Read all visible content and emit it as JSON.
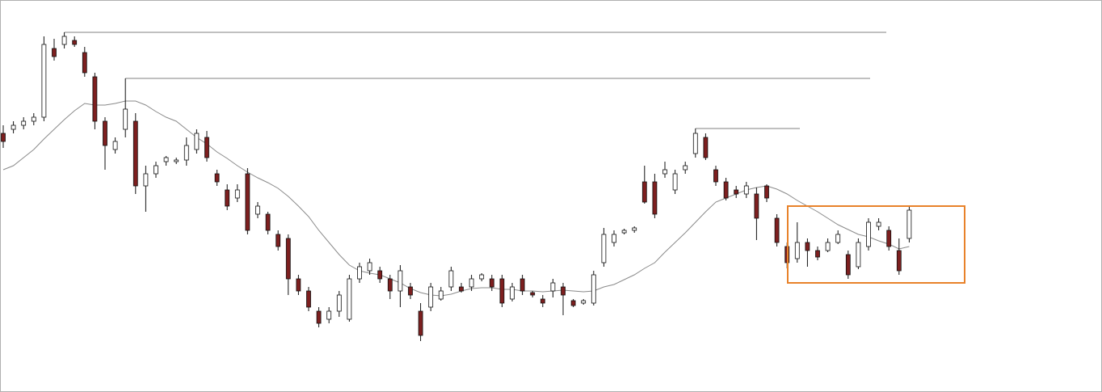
{
  "chart_data": {
    "type": "candlestick",
    "open": [
      320,
      325,
      330,
      335,
      340,
      425,
      430,
      435,
      420,
      390,
      335,
      300,
      325,
      335,
      255,
      270,
      285,
      285,
      287,
      300,
      315,
      270,
      250,
      240,
      270,
      220,
      220,
      195,
      190,
      140,
      125,
      100,
      90,
      100,
      90,
      140,
      150,
      150,
      140,
      125,
      130,
      100,
      105,
      115,
      130,
      130,
      130,
      140,
      140,
      140,
      115,
      140,
      123,
      115,
      125,
      130,
      113,
      110,
      110,
      160,
      185,
      197,
      200,
      260,
      260,
      270,
      250,
      275,
      295,
      315,
      275,
      260,
      250,
      245,
      245,
      255,
      215,
      180,
      165,
      185,
      175,
      175,
      185,
      170,
      155,
      180,
      205,
      200,
      175,
      190
    ],
    "high": [
      330,
      335,
      340,
      345,
      440,
      437,
      445,
      440,
      427,
      395,
      340,
      315,
      388,
      345,
      280,
      285,
      292,
      290,
      315,
      325,
      323,
      275,
      257,
      257,
      277,
      235,
      223,
      200,
      195,
      145,
      130,
      105,
      105,
      125,
      145,
      160,
      165,
      155,
      145,
      157,
      135,
      110,
      135,
      130,
      155,
      135,
      145,
      147,
      145,
      145,
      135,
      145,
      125,
      120,
      140,
      135,
      115,
      115,
      150,
      203,
      200,
      202,
      205,
      280,
      270,
      285,
      275,
      285,
      326,
      320,
      280,
      265,
      255,
      260,
      253,
      257,
      220,
      185,
      210,
      190,
      180,
      190,
      200,
      175,
      190,
      215,
      215,
      205,
      190,
      230
    ],
    "low": [
      302,
      320,
      325,
      330,
      335,
      410,
      425,
      427,
      390,
      325,
      275,
      295,
      315,
      245,
      223,
      265,
      280,
      282,
      280,
      295,
      285,
      255,
      225,
      235,
      195,
      215,
      195,
      175,
      120,
      120,
      100,
      80,
      85,
      93,
      87,
      135,
      145,
      135,
      115,
      105,
      115,
      63,
      100,
      113,
      125,
      123,
      125,
      137,
      125,
      105,
      112,
      120,
      117,
      105,
      117,
      95,
      105,
      108,
      107,
      155,
      180,
      195,
      197,
      233,
      215,
      265,
      245,
      270,
      290,
      287,
      255,
      237,
      240,
      240,
      188,
      235,
      180,
      153,
      160,
      155,
      163,
      173,
      183,
      140,
      152,
      175,
      200,
      175,
      145,
      185
    ],
    "close": [
      310,
      330,
      335,
      340,
      430,
      415,
      440,
      430,
      395,
      335,
      305,
      310,
      350,
      255,
      270,
      280,
      290,
      287,
      305,
      320,
      290,
      260,
      230,
      250,
      200,
      230,
      200,
      180,
      140,
      125,
      105,
      85,
      100,
      120,
      140,
      155,
      160,
      140,
      125,
      150,
      120,
      70,
      130,
      125,
      150,
      125,
      140,
      145,
      130,
      110,
      130,
      125,
      120,
      110,
      135,
      120,
      107,
      113,
      145,
      195,
      195,
      200,
      203,
      235,
      220,
      275,
      270,
      280,
      320,
      290,
      260,
      240,
      245,
      255,
      215,
      240,
      185,
      160,
      185,
      175,
      167,
      185,
      195,
      145,
      185,
      210,
      210,
      180,
      150,
      225
    ],
    "ma": [
      275,
      280,
      290,
      300,
      313,
      325,
      337,
      348,
      357,
      355,
      355,
      357,
      360,
      360,
      355,
      347,
      340,
      335,
      325,
      315,
      307,
      297,
      289,
      280,
      272,
      265,
      259,
      252,
      242,
      230,
      217,
      200,
      185,
      170,
      157,
      150,
      147,
      145,
      140,
      135,
      128,
      123,
      120,
      119,
      121,
      125,
      128,
      129,
      129,
      127,
      127,
      125,
      125,
      124,
      125,
      126,
      125,
      124,
      125,
      130,
      133,
      139,
      145,
      153,
      160,
      173,
      185,
      197,
      210,
      223,
      235,
      240,
      245,
      250,
      253,
      255,
      251,
      245,
      237,
      230,
      223,
      215,
      207,
      201,
      195,
      192,
      187,
      183,
      177,
      180
    ],
    "levels": [
      445,
      388,
      326
    ],
    "ylim": [
      0,
      485
    ],
    "up_color": "#ffffff",
    "down_color": "#7d1f1f",
    "ma_color": "#8a8a8a",
    "level_color": "#9a9a9a"
  }
}
